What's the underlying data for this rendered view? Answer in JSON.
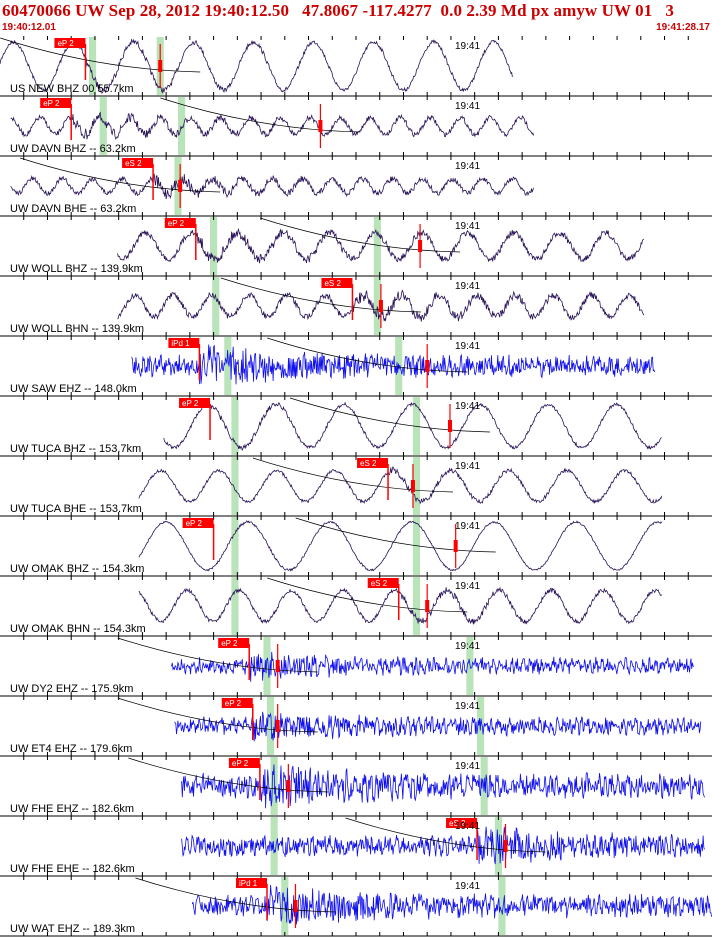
{
  "header": {
    "title": "60470066 UW Sep 28, 2012 19:40:12.50   47.8067 -117.4277  0.0 2.39 Md px amyw UW 01   3",
    "start_time": "19:40:12.01",
    "end_time": "19:41:28.17"
  },
  "minute_mark": "19:41",
  "colors": {
    "frame": "#000000",
    "pick_box": "#ff0000",
    "pick_text": "#ffffff",
    "window": "#b9e3b9",
    "long_period": "#2a1458",
    "short_period": "#1010ee"
  },
  "traces": [
    {
      "label": "US NEW BHZ 00 55.7km",
      "type": "long",
      "start": 0.0,
      "end": 0.72,
      "amp": 0.4,
      "period": 60,
      "noise": 0.06,
      "burst": 0.42,
      "pick": "eP 2",
      "pick_pos": 0.12,
      "window": [
        0.125,
        0.135
      ],
      "window2": [
        0.22,
        0.23
      ],
      "marker": 0.225,
      "clip": true
    },
    {
      "label": "UW DAVN BHZ -- 63.2km",
      "type": "long",
      "start": 0.015,
      "end": 0.75,
      "amp": 0.14,
      "period": 30,
      "noise": 0.08,
      "burst": 0.55,
      "pick": "eP 2",
      "pick_pos": 0.1,
      "window": [
        0.14,
        0.15
      ],
      "window2": [
        0.25,
        0.26
      ],
      "marker": 0.45,
      "clip": false
    },
    {
      "label": "UW DAVN BHE -- 63.2km",
      "type": "long",
      "start": 0.015,
      "end": 0.75,
      "amp": 0.12,
      "period": 30,
      "noise": 0.08,
      "burst": 0.6,
      "pick": "eS 2",
      "pick_pos": 0.215,
      "window": [
        0.245,
        0.255
      ],
      "window2": null,
      "marker": 0.253,
      "clip": false
    },
    {
      "label": "UW WOLL BHZ -- 139.9km",
      "type": "long",
      "start": 0.165,
      "end": 0.905,
      "amp": 0.22,
      "period": 46,
      "noise": 0.1,
      "burst": 0.4,
      "pick": "eP 2",
      "pick_pos": 0.275,
      "window": [
        0.295,
        0.305
      ],
      "window2": [
        0.525,
        0.535
      ],
      "marker": 0.59,
      "clip": false
    },
    {
      "label": "UW WOLL BHN -- 139.9km",
      "type": "long",
      "start": 0.165,
      "end": 0.905,
      "amp": 0.18,
      "period": 38,
      "noise": 0.1,
      "burst": 0.5,
      "pick": "eS 2",
      "pick_pos": 0.495,
      "window": [
        0.298,
        0.308
      ],
      "window2": [
        0.525,
        0.535
      ],
      "marker": 0.535,
      "clip": false
    },
    {
      "label": "UW SAW EHZ -- 148.0km",
      "type": "short",
      "start": 0.185,
      "end": 0.92,
      "amp": 0.04,
      "period": 6,
      "noise": 0.3,
      "burst": 0.45,
      "pick": "iPd 1",
      "pick_pos": 0.28,
      "window": [
        0.315,
        0.325
      ],
      "window2": [
        0.555,
        0.565
      ],
      "marker": 0.6,
      "clip": false
    },
    {
      "label": "UW TUCA BHZ -- 153.7km",
      "type": "long",
      "start": 0.23,
      "end": 0.93,
      "amp": 0.36,
      "period": 68,
      "noise": 0.05,
      "burst": 0.35,
      "pick": "eP 2",
      "pick_pos": 0.295,
      "window": [
        0.325,
        0.335
      ],
      "window2": [
        0.58,
        0.59
      ],
      "marker": 0.632,
      "clip": false
    },
    {
      "label": "UW TUCA BHE -- 153.7km",
      "type": "long",
      "start": 0.195,
      "end": 0.93,
      "amp": 0.26,
      "period": 58,
      "noise": 0.05,
      "burst": 0.45,
      "pick": "eS 2",
      "pick_pos": 0.545,
      "window": [
        0.325,
        0.335
      ],
      "window2": [
        0.58,
        0.59
      ],
      "marker": 0.58,
      "clip": false
    },
    {
      "label": "UW OMAK BHZ -- 154.3km",
      "type": "long",
      "start": 0.195,
      "end": 0.93,
      "amp": 0.4,
      "period": 82,
      "noise": 0.03,
      "burst": 0.25,
      "pick": "eP 2",
      "pick_pos": 0.3,
      "window": [
        0.325,
        0.335
      ],
      "window2": [
        0.58,
        0.59
      ],
      "marker": 0.64,
      "clip": true
    },
    {
      "label": "UW OMAK BHN -- 154.3km",
      "type": "long",
      "start": 0.195,
      "end": 0.93,
      "amp": 0.26,
      "period": 52,
      "noise": 0.06,
      "burst": 0.5,
      "pick": "eS 2",
      "pick_pos": 0.56,
      "window": [
        0.325,
        0.335
      ],
      "window2": [
        0.58,
        0.59
      ],
      "marker": 0.6,
      "clip": false
    },
    {
      "label": "UW DY2 EHZ -- 175.9km",
      "type": "short",
      "start": 0.24,
      "end": 0.975,
      "amp": 0.05,
      "period": 6,
      "noise": 0.2,
      "burst": 0.4,
      "pick": "eP 2",
      "pick_pos": 0.35,
      "window": [
        0.37,
        0.38
      ],
      "window2": [
        0.655,
        0.665
      ],
      "marker": 0.39,
      "clip": false
    },
    {
      "label": "UW ET4 EHZ -- 179.6km",
      "type": "short",
      "start": 0.245,
      "end": 0.985,
      "amp": 0.05,
      "period": 6,
      "noise": 0.22,
      "burst": 0.45,
      "pick": "eP 2",
      "pick_pos": 0.355,
      "window": [
        0.375,
        0.385
      ],
      "window2": [
        0.67,
        0.68
      ],
      "marker": 0.39,
      "clip": false
    },
    {
      "label": "UW FHE EHZ -- 182.6km",
      "type": "short",
      "start": 0.255,
      "end": 0.99,
      "amp": 0.06,
      "period": 6,
      "noise": 0.33,
      "burst": 0.4,
      "pick": "eP 2",
      "pick_pos": 0.365,
      "window": [
        0.38,
        0.39
      ],
      "window2": [
        0.675,
        0.685
      ],
      "marker": 0.405,
      "clip": false
    },
    {
      "label": "UW FHE EHE -- 182.6km",
      "type": "short",
      "start": 0.255,
      "end": 0.99,
      "amp": 0.05,
      "period": 6,
      "noise": 0.28,
      "burst": 0.45,
      "pick": "eS 2",
      "pick_pos": 0.67,
      "window": [
        0.38,
        0.39
      ],
      "window2": [
        0.695,
        0.705
      ],
      "marker": 0.71,
      "clip": false
    },
    {
      "label": "UW WAT EHZ -- 189.3km",
      "type": "short",
      "start": 0.27,
      "end": 1.0,
      "amp": 0.05,
      "period": 6,
      "noise": 0.3,
      "burst": 0.4,
      "pick": "iPd 1",
      "pick_pos": 0.375,
      "window": [
        0.395,
        0.405
      ],
      "window2": [
        0.7,
        0.71
      ],
      "marker": 0.415,
      "clip": false
    }
  ]
}
